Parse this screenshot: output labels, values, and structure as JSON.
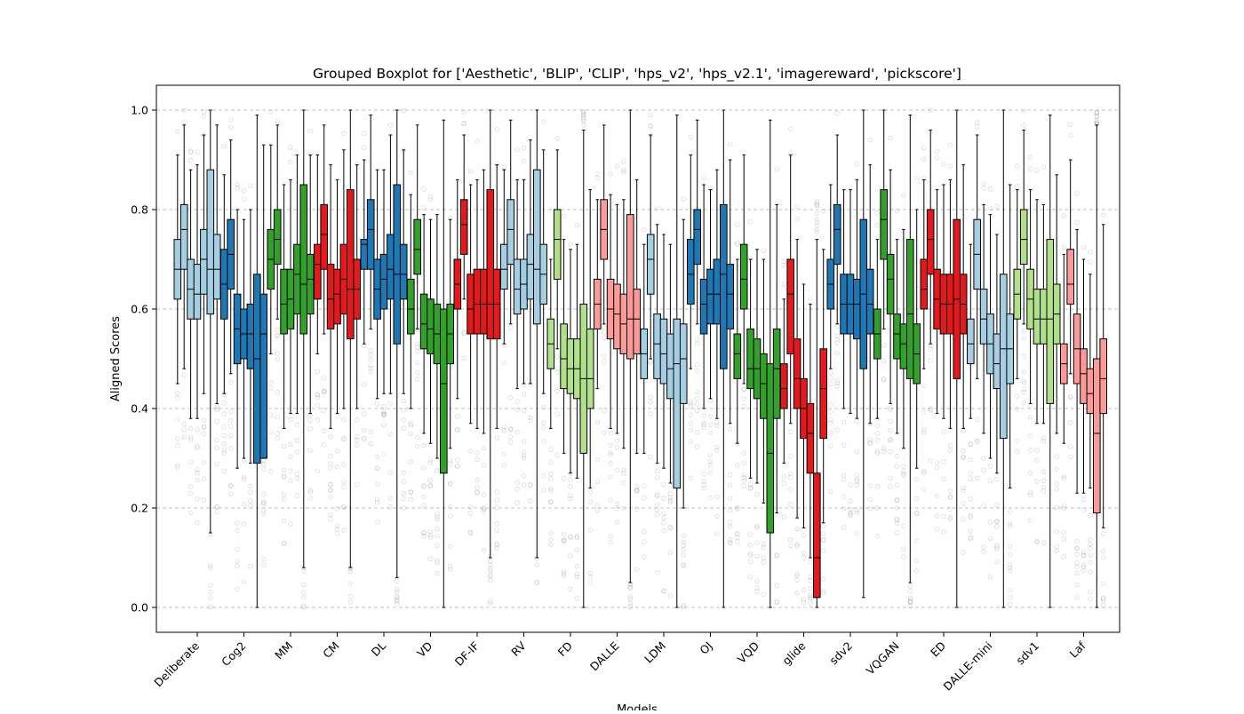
{
  "chart_data": {
    "type": "boxplot",
    "title": "Grouped Boxplot for ['Aesthetic', 'BLIP', 'CLIP', 'hps_v2', 'hps_v2.1', 'imagereward', 'pickscore']",
    "xlabel": "Models",
    "ylabel": "Aligned Scores",
    "ylim": [
      -0.05,
      1.05
    ],
    "yticks": [
      "0.0",
      "0.2",
      "0.4",
      "0.6",
      "0.8",
      "1.0"
    ],
    "grid": "horizontal dashed",
    "metrics": [
      "Aesthetic",
      "BLIP",
      "CLIP",
      "hps_v2",
      "hps_v2.1",
      "imagereward",
      "pickscore"
    ],
    "categories": [
      {
        "name": "Deliberate",
        "color": "#a6cee3",
        "boxes": [
          [
            0.45,
            0.62,
            0.68,
            0.74,
            0.91
          ],
          [
            0.48,
            0.68,
            0.76,
            0.81,
            0.97
          ],
          [
            0.38,
            0.58,
            0.64,
            0.7,
            0.88
          ],
          [
            0.38,
            0.58,
            0.63,
            0.69,
            0.89
          ],
          [
            0.43,
            0.63,
            0.7,
            0.76,
            0.95
          ],
          [
            0.15,
            0.59,
            0.68,
            0.88,
            1.0
          ],
          [
            0.41,
            0.62,
            0.68,
            0.75,
            0.97
          ]
        ]
      },
      {
        "name": "Cog2",
        "color": "#1f78b4",
        "boxes": [
          [
            0.43,
            0.58,
            0.65,
            0.72,
            0.87
          ],
          [
            0.47,
            0.64,
            0.71,
            0.78,
            0.94
          ],
          [
            0.28,
            0.49,
            0.56,
            0.63,
            0.8
          ],
          [
            0.3,
            0.5,
            0.55,
            0.6,
            0.78
          ],
          [
            0.29,
            0.48,
            0.55,
            0.61,
            0.8
          ],
          [
            0.0,
            0.29,
            0.5,
            0.67,
            0.99
          ],
          [
            0.31,
            0.3,
            0.55,
            0.63,
            0.93
          ]
        ]
      },
      {
        "name": "MM",
        "color": "#33a02c",
        "boxes": [
          [
            0.51,
            0.64,
            0.7,
            0.76,
            0.93
          ],
          [
            0.58,
            0.69,
            0.74,
            0.8,
            0.97
          ],
          [
            0.36,
            0.55,
            0.61,
            0.68,
            0.85
          ],
          [
            0.39,
            0.56,
            0.62,
            0.68,
            0.86
          ],
          [
            0.39,
            0.59,
            0.67,
            0.73,
            0.91
          ],
          [
            0.08,
            0.55,
            0.65,
            0.85,
            1.0
          ],
          [
            0.39,
            0.59,
            0.66,
            0.71,
            0.91
          ]
        ]
      },
      {
        "name": "CM",
        "color": "#e31a1c",
        "boxes": [
          [
            0.51,
            0.62,
            0.69,
            0.73,
            0.91
          ],
          [
            0.55,
            0.68,
            0.75,
            0.81,
            0.97
          ],
          [
            0.36,
            0.56,
            0.62,
            0.69,
            0.89
          ],
          [
            0.39,
            0.57,
            0.63,
            0.68,
            0.86
          ],
          [
            0.4,
            0.59,
            0.66,
            0.73,
            0.92
          ],
          [
            0.08,
            0.54,
            0.64,
            0.84,
            1.0
          ],
          [
            0.4,
            0.58,
            0.64,
            0.7,
            0.89
          ]
        ]
      },
      {
        "name": "DL",
        "color": "#1f78b4",
        "boxes": [
          [
            0.53,
            0.68,
            0.73,
            0.74,
            0.9
          ],
          [
            0.56,
            0.68,
            0.76,
            0.82,
            0.99
          ],
          [
            0.42,
            0.58,
            0.64,
            0.7,
            0.88
          ],
          [
            0.43,
            0.6,
            0.66,
            0.71,
            0.88
          ],
          [
            0.43,
            0.62,
            0.68,
            0.75,
            0.95
          ],
          [
            0.06,
            0.53,
            0.67,
            0.85,
            1.0
          ],
          [
            0.43,
            0.62,
            0.67,
            0.73,
            0.92
          ]
        ]
      },
      {
        "name": "VD",
        "color": "#33a02c",
        "boxes": [
          [
            0.4,
            0.55,
            0.6,
            0.66,
            0.83
          ],
          [
            0.56,
            0.67,
            0.72,
            0.78,
            0.97
          ],
          [
            0.35,
            0.52,
            0.57,
            0.63,
            0.79
          ],
          [
            0.33,
            0.51,
            0.56,
            0.62,
            0.78
          ],
          [
            0.3,
            0.49,
            0.55,
            0.61,
            0.79
          ],
          [
            0.0,
            0.27,
            0.45,
            0.6,
            0.98
          ],
          [
            0.32,
            0.49,
            0.55,
            0.61,
            0.78
          ]
        ]
      },
      {
        "name": "DF-IF",
        "color": "#e31a1c",
        "boxes": [
          [
            0.42,
            0.6,
            0.65,
            0.7,
            0.86
          ],
          [
            0.62,
            0.71,
            0.77,
            0.82,
            0.95
          ],
          [
            0.37,
            0.55,
            0.6,
            0.67,
            0.85
          ],
          [
            0.36,
            0.55,
            0.61,
            0.68,
            0.86
          ],
          [
            0.35,
            0.55,
            0.61,
            0.68,
            0.88
          ],
          [
            0.1,
            0.54,
            0.61,
            0.84,
            1.0
          ],
          [
            0.36,
            0.54,
            0.61,
            0.68,
            0.89
          ]
        ]
      },
      {
        "name": "RV",
        "color": "#a6cee3",
        "boxes": [
          [
            0.53,
            0.64,
            0.68,
            0.73,
            0.88
          ],
          [
            0.57,
            0.69,
            0.76,
            0.82,
            0.98
          ],
          [
            0.44,
            0.59,
            0.64,
            0.7,
            0.86
          ],
          [
            0.45,
            0.6,
            0.65,
            0.7,
            0.86
          ],
          [
            0.45,
            0.62,
            0.69,
            0.75,
            0.94
          ],
          [
            0.1,
            0.57,
            0.68,
            0.88,
            1.0
          ],
          [
            0.43,
            0.61,
            0.67,
            0.73,
            0.92
          ]
        ]
      },
      {
        "name": "FD",
        "color": "#b2df8a",
        "boxes": [
          [
            0.36,
            0.48,
            0.53,
            0.58,
            0.7
          ],
          [
            0.52,
            0.66,
            0.74,
            0.8,
            0.92
          ],
          [
            0.31,
            0.44,
            0.5,
            0.57,
            0.74
          ],
          [
            0.27,
            0.43,
            0.48,
            0.54,
            0.72
          ],
          [
            0.26,
            0.42,
            0.48,
            0.54,
            0.73
          ],
          [
            0.0,
            0.31,
            0.46,
            0.61,
            0.96
          ],
          [
            0.24,
            0.4,
            0.46,
            0.56,
            0.84
          ]
        ]
      },
      {
        "name": "DALLE",
        "color": "#fb9a99",
        "boxes": [
          [
            0.44,
            0.56,
            0.61,
            0.66,
            0.82
          ],
          [
            0.57,
            0.7,
            0.76,
            0.82,
            0.97
          ],
          [
            0.36,
            0.54,
            0.6,
            0.66,
            0.83
          ],
          [
            0.35,
            0.52,
            0.59,
            0.65,
            0.81
          ],
          [
            0.32,
            0.51,
            0.57,
            0.63,
            0.82
          ],
          [
            0.05,
            0.5,
            0.58,
            0.79,
            1.0
          ],
          [
            0.31,
            0.51,
            0.58,
            0.64,
            0.86
          ]
        ]
      },
      {
        "name": "LDM",
        "color": "#a6cee3",
        "boxes": [
          [
            0.31,
            0.46,
            0.51,
            0.56,
            0.73
          ],
          [
            0.5,
            0.63,
            0.7,
            0.75,
            0.95
          ],
          [
            0.29,
            0.46,
            0.53,
            0.59,
            0.77
          ],
          [
            0.28,
            0.45,
            0.51,
            0.58,
            0.75
          ],
          [
            0.25,
            0.42,
            0.48,
            0.55,
            0.73
          ],
          [
            0.0,
            0.24,
            0.49,
            0.58,
            0.99
          ],
          [
            0.2,
            0.41,
            0.5,
            0.57,
            0.78
          ]
        ]
      },
      {
        "name": "OJ",
        "color": "#1f78b4",
        "boxes": [
          [
            0.48,
            0.61,
            0.67,
            0.74,
            0.91
          ],
          [
            0.57,
            0.69,
            0.76,
            0.8,
            0.98
          ],
          [
            0.4,
            0.55,
            0.61,
            0.66,
            0.85
          ],
          [
            0.42,
            0.57,
            0.63,
            0.68,
            0.84
          ],
          [
            0.38,
            0.57,
            0.63,
            0.7,
            0.88
          ],
          [
            0.0,
            0.48,
            0.67,
            0.81,
            1.0
          ],
          [
            0.37,
            0.56,
            0.63,
            0.69,
            0.9
          ]
        ]
      },
      {
        "name": "VQD",
        "color": "#33a02c",
        "boxes": [
          [
            0.33,
            0.46,
            0.51,
            0.55,
            0.7
          ],
          [
            0.45,
            0.6,
            0.66,
            0.73,
            0.91
          ],
          [
            0.26,
            0.44,
            0.48,
            0.56,
            0.7
          ],
          [
            0.25,
            0.42,
            0.48,
            0.54,
            0.72
          ],
          [
            0.21,
            0.38,
            0.45,
            0.51,
            0.7
          ],
          [
            0.0,
            0.15,
            0.31,
            0.49,
            0.98
          ],
          [
            0.19,
            0.38,
            0.48,
            0.56,
            0.81
          ]
        ]
      },
      {
        "name": "glide",
        "color": "#e31a1c",
        "boxes": [
          [
            0.29,
            0.4,
            0.44,
            0.49,
            0.62
          ],
          [
            0.37,
            0.51,
            0.63,
            0.7,
            0.91
          ],
          [
            0.18,
            0.4,
            0.46,
            0.54,
            0.74
          ],
          [
            0.16,
            0.34,
            0.4,
            0.46,
            0.65
          ],
          [
            0.1,
            0.27,
            0.35,
            0.41,
            0.61
          ],
          [
            0.0,
            0.02,
            0.1,
            0.27,
            0.74
          ],
          [
            0.17,
            0.34,
            0.44,
            0.52,
            0.72
          ]
        ]
      },
      {
        "name": "sdv2",
        "color": "#1f78b4",
        "boxes": [
          [
            0.48,
            0.6,
            0.65,
            0.7,
            0.85
          ],
          [
            0.57,
            0.69,
            0.76,
            0.81,
            0.95
          ],
          [
            0.4,
            0.55,
            0.61,
            0.67,
            0.84
          ],
          [
            0.39,
            0.55,
            0.61,
            0.67,
            0.84
          ],
          [
            0.38,
            0.54,
            0.61,
            0.66,
            0.86
          ],
          [
            0.02,
            0.48,
            0.63,
            0.78,
            1.0
          ],
          [
            0.37,
            0.55,
            0.61,
            0.68,
            0.89
          ]
        ]
      },
      {
        "name": "VQGAN",
        "color": "#33a02c",
        "boxes": [
          [
            0.38,
            0.5,
            0.55,
            0.6,
            0.74
          ],
          [
            0.56,
            0.7,
            0.78,
            0.84,
            1.0
          ],
          [
            0.41,
            0.59,
            0.66,
            0.71,
            0.88
          ],
          [
            0.35,
            0.5,
            0.55,
            0.59,
            0.74
          ],
          [
            0.32,
            0.48,
            0.53,
            0.57,
            0.76
          ],
          [
            0.05,
            0.46,
            0.59,
            0.74,
            0.99
          ],
          [
            0.28,
            0.45,
            0.51,
            0.57,
            0.8
          ]
        ]
      },
      {
        "name": "ED",
        "color": "#e31a1c",
        "boxes": [
          [
            0.48,
            0.6,
            0.64,
            0.7,
            0.86
          ],
          [
            0.53,
            0.67,
            0.74,
            0.8,
            0.96
          ],
          [
            0.39,
            0.56,
            0.62,
            0.68,
            0.84
          ],
          [
            0.38,
            0.55,
            0.61,
            0.67,
            0.85
          ],
          [
            0.36,
            0.55,
            0.61,
            0.67,
            0.86
          ],
          [
            0.0,
            0.46,
            0.62,
            0.78,
            1.0
          ],
          [
            0.36,
            0.55,
            0.61,
            0.67,
            0.89
          ]
        ]
      },
      {
        "name": "DALLE-mini",
        "color": "#a6cee3",
        "boxes": [
          [
            0.38,
            0.49,
            0.53,
            0.58,
            0.73
          ],
          [
            0.46,
            0.64,
            0.71,
            0.78,
            0.95
          ],
          [
            0.35,
            0.53,
            0.58,
            0.64,
            0.81
          ],
          [
            0.3,
            0.47,
            0.53,
            0.59,
            0.79
          ],
          [
            0.27,
            0.44,
            0.49,
            0.55,
            0.75
          ],
          [
            0.0,
            0.34,
            0.52,
            0.67,
            1.0
          ],
          [
            0.24,
            0.45,
            0.52,
            0.59,
            0.85
          ]
        ]
      },
      {
        "name": "sdv1",
        "color": "#b2df8a",
        "boxes": [
          [
            0.46,
            0.58,
            0.63,
            0.68,
            0.84
          ],
          [
            0.57,
            0.69,
            0.74,
            0.8,
            0.96
          ],
          [
            0.41,
            0.56,
            0.62,
            0.68,
            0.84
          ],
          [
            0.37,
            0.53,
            0.58,
            0.64,
            0.82
          ],
          [
            0.37,
            0.53,
            0.58,
            0.64,
            0.81
          ],
          [
            0.0,
            0.41,
            0.58,
            0.74,
            0.99
          ],
          [
            0.35,
            0.53,
            0.59,
            0.65,
            0.87
          ]
        ]
      },
      {
        "name": "Laf",
        "color": "#fb9a99",
        "boxes": [
          [
            0.33,
            0.45,
            0.49,
            0.53,
            0.71
          ],
          [
            0.47,
            0.61,
            0.65,
            0.72,
            0.9
          ],
          [
            0.23,
            0.45,
            0.52,
            0.59,
            0.76
          ],
          [
            0.23,
            0.41,
            0.47,
            0.52,
            0.7
          ],
          [
            0.24,
            0.39,
            0.43,
            0.48,
            0.67
          ],
          [
            0.0,
            0.19,
            0.35,
            0.5,
            0.97
          ],
          [
            0.16,
            0.39,
            0.46,
            0.54,
            0.77
          ]
        ]
      }
    ]
  }
}
